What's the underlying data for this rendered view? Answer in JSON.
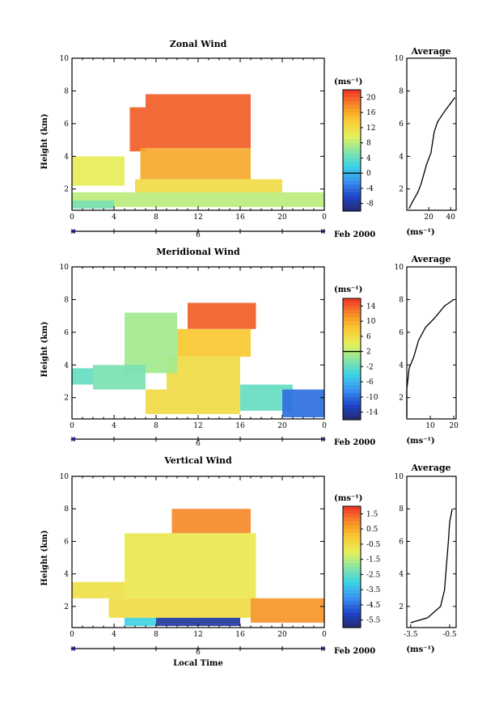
{
  "figure": {
    "date_label": "Feb 2000",
    "day_label": "6",
    "xlabel": "Local Time",
    "avg_title": "Average",
    "units": "(ms⁻¹)"
  },
  "chart_data": [
    {
      "type": "heatmap",
      "title": "Zonal Wind",
      "ylabel": "Height (km)",
      "xticks": [
        "0",
        "4",
        "8",
        "12",
        "16",
        "20",
        "0"
      ],
      "yticks": [
        "2",
        "4",
        "6",
        "8",
        "10"
      ],
      "xlim": [
        0,
        24
      ],
      "ylim": [
        0.7,
        10
      ],
      "colorbar": {
        "units": "(ms⁻¹)",
        "ticks": [
          "20",
          "16",
          "12",
          "8",
          "4",
          "0",
          "-4",
          "-8"
        ],
        "range": [
          -10,
          22
        ]
      },
      "regions": [
        {
          "x": [
            7,
            17
          ],
          "y": [
            4.5,
            7.8
          ],
          "value": 20
        },
        {
          "x": [
            5.5,
            7
          ],
          "y": [
            4.3,
            7
          ],
          "value": 20
        },
        {
          "x": [
            6.5,
            17
          ],
          "y": [
            2.6,
            4.5
          ],
          "value": 16
        },
        {
          "x": [
            6,
            20
          ],
          "y": [
            1.8,
            2.6
          ],
          "value": 12
        },
        {
          "x": [
            0,
            5
          ],
          "y": [
            2.2,
            4
          ],
          "value": 10
        },
        {
          "x": [
            0,
            24
          ],
          "y": [
            0.9,
            1.8
          ],
          "value": 8
        },
        {
          "x": [
            0,
            4
          ],
          "y": [
            0.8,
            1.3
          ],
          "value": 5
        }
      ],
      "average_profile": {
        "xticks": [
          "20",
          "40"
        ],
        "xlim": [
          0,
          45
        ],
        "yticks": [
          "2",
          "4",
          "6",
          "8",
          "10"
        ],
        "points": [
          [
            2,
            0.8
          ],
          [
            5,
            1.2
          ],
          [
            10,
            1.8
          ],
          [
            13,
            2.3
          ],
          [
            18,
            3.5
          ],
          [
            22,
            4.2
          ],
          [
            25,
            5.5
          ],
          [
            28,
            6.1
          ],
          [
            35,
            6.8
          ],
          [
            44,
            7.6
          ]
        ]
      }
    },
    {
      "type": "heatmap",
      "title": "Meridional Wind",
      "ylabel": "Height (km)",
      "xticks": [
        "0",
        "4",
        "8",
        "12",
        "16",
        "20",
        "0"
      ],
      "yticks": [
        "2",
        "4",
        "6",
        "8",
        "10"
      ],
      "xlim": [
        0,
        24
      ],
      "ylim": [
        0.7,
        10
      ],
      "colorbar": {
        "units": "(ms⁻¹)",
        "ticks": [
          "14",
          "10",
          "6",
          "2",
          "-2",
          "-6",
          "-10",
          "-14"
        ],
        "range": [
          -16,
          16
        ]
      },
      "regions": [
        {
          "x": [
            11,
            17.5
          ],
          "y": [
            6.2,
            7.8
          ],
          "value": 14
        },
        {
          "x": [
            10,
            17
          ],
          "y": [
            4.5,
            6.2
          ],
          "value": 8
        },
        {
          "x": [
            9,
            16
          ],
          "y": [
            2.5,
            4.5
          ],
          "value": 6
        },
        {
          "x": [
            5,
            10
          ],
          "y": [
            3.5,
            7.2
          ],
          "value": 1
        },
        {
          "x": [
            2,
            7
          ],
          "y": [
            2.5,
            4
          ],
          "value": -1
        },
        {
          "x": [
            0,
            2
          ],
          "y": [
            2.8,
            3.8
          ],
          "value": -2
        },
        {
          "x": [
            7,
            16
          ],
          "y": [
            1,
            2.5
          ],
          "value": 6
        },
        {
          "x": [
            16,
            21
          ],
          "y": [
            1.2,
            2.8
          ],
          "value": -2
        },
        {
          "x": [
            20,
            24
          ],
          "y": [
            0.8,
            2.5
          ],
          "value": -10
        }
      ],
      "average_profile": {
        "xticks": [
          "10",
          "20"
        ],
        "xlim": [
          0,
          21
        ],
        "yticks": [
          "2",
          "4",
          "6",
          "8",
          "10"
        ],
        "points": [
          [
            0,
            0.8
          ],
          [
            0,
            2.5
          ],
          [
            1,
            3.8
          ],
          [
            3,
            4.5
          ],
          [
            5,
            5.5
          ],
          [
            8,
            6.3
          ],
          [
            12,
            6.9
          ],
          [
            16,
            7.6
          ],
          [
            20,
            8
          ]
        ]
      }
    },
    {
      "type": "heatmap",
      "title": "Vertical Wind",
      "ylabel": "Height (km)",
      "xticks": [
        "0",
        "4",
        "8",
        "12",
        "16",
        "20",
        "0"
      ],
      "yticks": [
        "2",
        "4",
        "6",
        "8",
        "10"
      ],
      "xlim": [
        0,
        24
      ],
      "ylim": [
        0.7,
        10
      ],
      "colorbar": {
        "units": "(ms⁻¹)",
        "ticks": [
          "1.5",
          "0.5",
          "-0.5",
          "-1.5",
          "-2.5",
          "-3.5",
          "-4.5",
          "-5.5"
        ],
        "range": [
          -6,
          2
        ]
      },
      "regions": [
        {
          "x": [
            9.5,
            17
          ],
          "y": [
            6.5,
            8
          ],
          "value": 1
        },
        {
          "x": [
            5,
            17.5
          ],
          "y": [
            2.5,
            6.5
          ],
          "value": -0.8
        },
        {
          "x": [
            0,
            5
          ],
          "y": [
            2.5,
            3.5
          ],
          "value": -0.6
        },
        {
          "x": [
            3.5,
            17
          ],
          "y": [
            1.3,
            2.5
          ],
          "value": -0.5
        },
        {
          "x": [
            17,
            24
          ],
          "y": [
            1,
            2.5
          ],
          "value": 0.8
        },
        {
          "x": [
            8,
            16
          ],
          "y": [
            0.8,
            1.3
          ],
          "value": -5.5
        },
        {
          "x": [
            5,
            8
          ],
          "y": [
            0.8,
            1.3
          ],
          "value": -3
        }
      ],
      "average_profile": {
        "xticks": [
          "-3.5",
          "-0.5"
        ],
        "xlim": [
          -3.8,
          0
        ],
        "yticks": [
          "2",
          "4",
          "6",
          "8",
          "10"
        ],
        "points": [
          [
            -3.5,
            1
          ],
          [
            -2.2,
            1.3
          ],
          [
            -1.2,
            2
          ],
          [
            -0.9,
            3
          ],
          [
            -0.8,
            4
          ],
          [
            -0.7,
            5
          ],
          [
            -0.6,
            6
          ],
          [
            -0.5,
            7.2
          ],
          [
            -0.3,
            8
          ]
        ]
      }
    }
  ]
}
